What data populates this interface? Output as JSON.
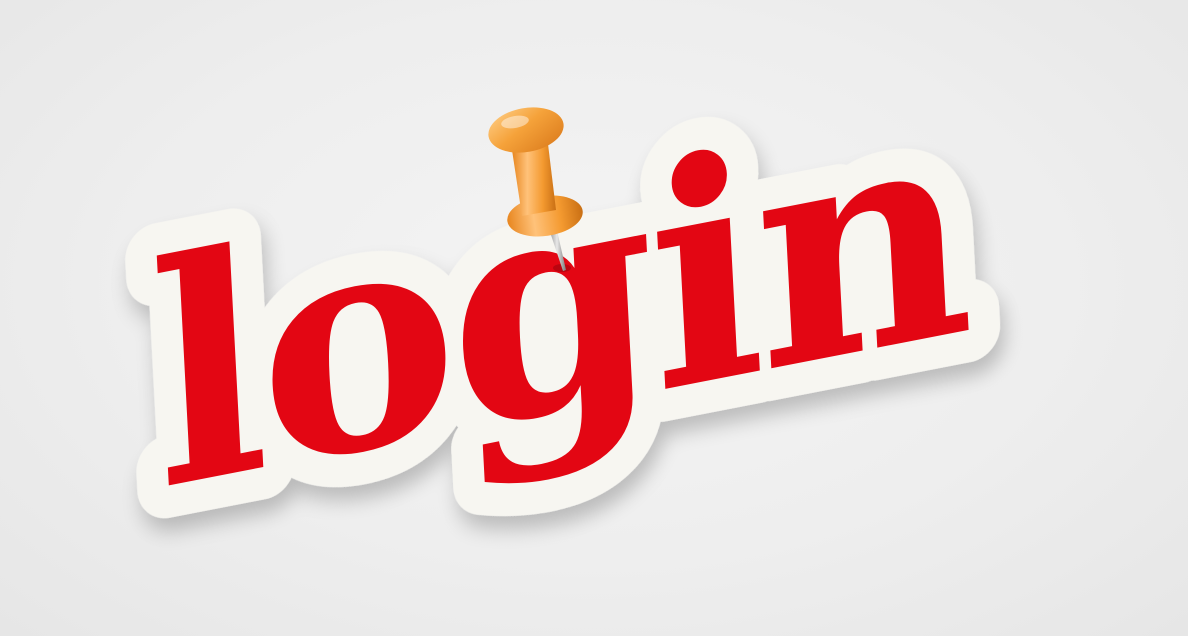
{
  "sticker": {
    "word": "login",
    "text_color": "#e30613",
    "sticker_color": "#f7f6f1",
    "background_color": "#ececec"
  },
  "pushpin": {
    "icon": "pushpin-icon",
    "color": "#f39a2c"
  }
}
